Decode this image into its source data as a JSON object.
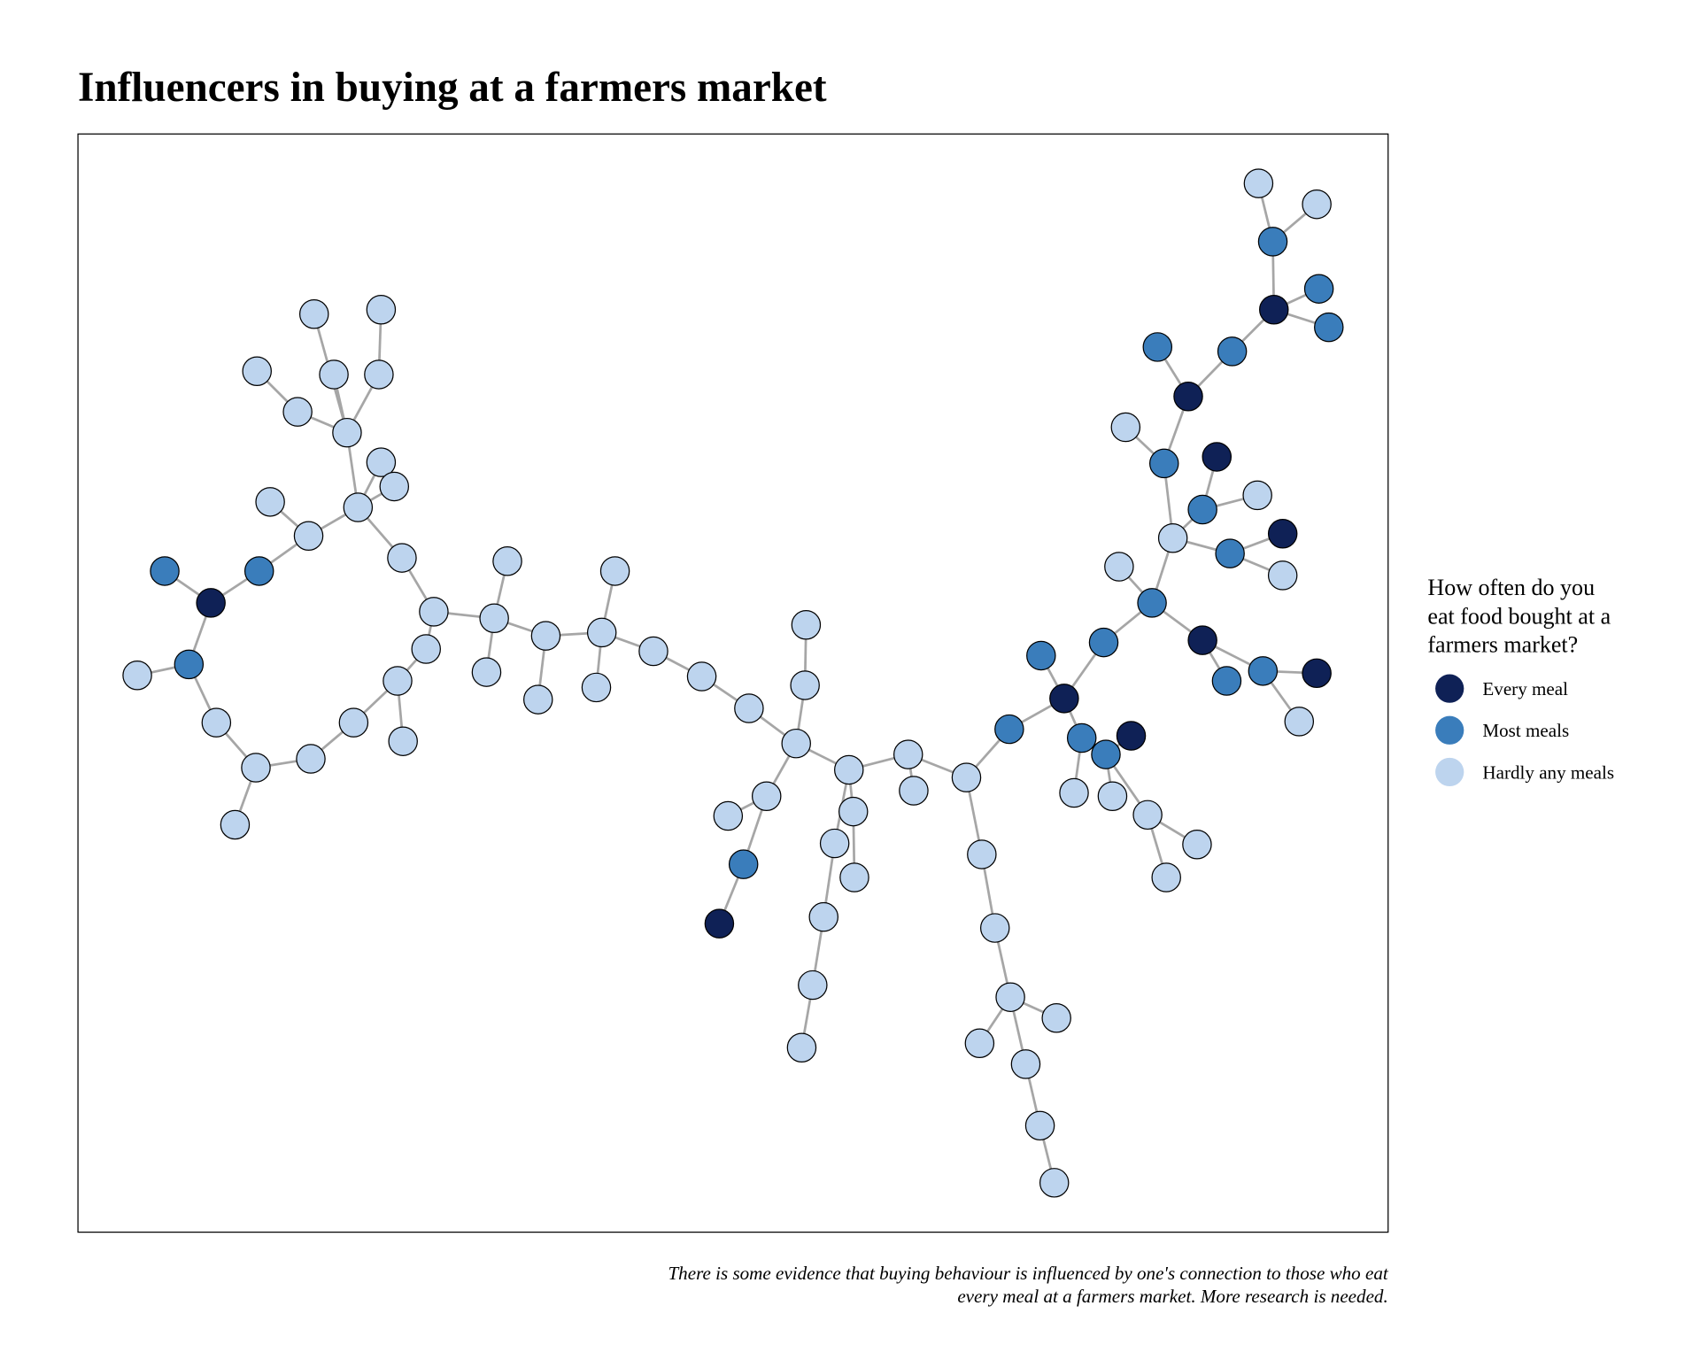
{
  "chart_data": {
    "type": "network",
    "title": "Influencers in buying at a farmers market",
    "caption": [
      "There is some evidence that buying behaviour is influenced by one's connection to those who eat",
      "every meal at a farmers market. More research is needed."
    ],
    "legend": {
      "title": [
        "How often do you",
        "eat food bought at a",
        "farmers market?"
      ],
      "entries": [
        {
          "name": "Every meal",
          "color": "#0f2156"
        },
        {
          "name": "Most meals",
          "color": "#3a7dbb"
        },
        {
          "name": "Hardly any meals",
          "color": "#bdd4ee"
        }
      ]
    },
    "nodes": [
      "Hardly any meals",
      "Hardly any meals",
      "Hardly any meals",
      "Hardly any meals",
      "Hardly any meals",
      "Hardly any meals",
      "Hardly any meals",
      "Hardly any meals",
      "Hardly any meals",
      "Hardly any meals",
      "Hardly any meals",
      "Hardly any meals",
      "Hardly any meals",
      "Most meals",
      "Most meals",
      "Every meal",
      "Hardly any meals",
      "Most meals",
      "Hardly any meals",
      "Hardly any meals",
      "Hardly any meals",
      "Hardly any meals",
      "Hardly any meals",
      "Hardly any meals",
      "Hardly any meals",
      "Hardly any meals",
      "Hardly any meals",
      "Hardly any meals",
      "Hardly any meals",
      "Hardly any meals",
      "Hardly any meals",
      "Hardly any meals",
      "Hardly any meals",
      "Hardly any meals",
      "Hardly any meals",
      "Hardly any meals",
      "Hardly any meals",
      "Hardly any meals",
      "Hardly any meals",
      "Hardly any meals",
      "Hardly any meals",
      "Hardly any meals",
      "Hardly any meals",
      "Most meals",
      "Every meal",
      "Hardly any meals",
      "Hardly any meals",
      "Hardly any meals",
      "Hardly any meals",
      "Hardly any meals",
      "Hardly any meals",
      "Hardly any meals",
      "Hardly any meals",
      "Hardly any meals",
      "Hardly any meals",
      "Hardly any meals",
      "Hardly any meals",
      "Hardly any meals",
      "Hardly any meals",
      "Hardly any meals",
      "Hardly any meals",
      "Hardly any meals",
      "Hardly any meals",
      "Most meals",
      "Every meal",
      "Most meals",
      "Most meals",
      "Most meals",
      "Most meals",
      "Every meal",
      "Hardly any meals",
      "Hardly any meals",
      "Hardly any meals",
      "Hardly any meals",
      "Hardly any meals",
      "Most meals",
      "Hardly any meals",
      "Hardly any meals",
      "Most meals",
      "Hardly any meals",
      "Every meal",
      "Most meals",
      "Most meals",
      "Every meal",
      "Most meals",
      "Most meals",
      "Most meals",
      "Hardly any meals",
      "Hardly any meals",
      "Most meals",
      "Every meal",
      "Hardly any meals",
      "Most meals",
      "Every meal",
      "Hardly any meals",
      "Every meal",
      "Most meals",
      "Most meals",
      "Every meal",
      "Hardly any meals"
    ],
    "edges": [
      [
        0,
        6
      ],
      [
        3,
        6
      ],
      [
        1,
        4
      ],
      [
        4,
        6
      ],
      [
        2,
        5
      ],
      [
        5,
        6
      ],
      [
        6,
        10
      ],
      [
        10,
        7
      ],
      [
        10,
        8
      ],
      [
        9,
        11
      ],
      [
        11,
        10
      ],
      [
        10,
        12
      ],
      [
        12,
        16
      ],
      [
        14,
        11
      ],
      [
        15,
        14
      ],
      [
        13,
        15
      ],
      [
        15,
        17
      ],
      [
        17,
        18
      ],
      [
        17,
        21
      ],
      [
        21,
        25
      ],
      [
        25,
        26
      ],
      [
        25,
        24
      ],
      [
        24,
        22
      ],
      [
        22,
        20
      ],
      [
        20,
        23
      ],
      [
        20,
        19
      ],
      [
        19,
        16
      ],
      [
        16,
        27
      ],
      [
        27,
        28
      ],
      [
        27,
        29
      ],
      [
        27,
        30
      ],
      [
        30,
        31
      ],
      [
        30,
        32
      ],
      [
        32,
        33
      ],
      [
        32,
        34
      ],
      [
        32,
        35
      ],
      [
        35,
        36
      ],
      [
        36,
        37
      ],
      [
        37,
        38
      ],
      [
        38,
        40
      ],
      [
        40,
        39
      ],
      [
        38,
        41
      ],
      [
        41,
        42
      ],
      [
        41,
        43
      ],
      [
        43,
        44
      ],
      [
        38,
        45
      ],
      [
        45,
        46
      ],
      [
        46,
        47
      ],
      [
        45,
        48
      ],
      [
        48,
        49
      ],
      [
        49,
        50
      ],
      [
        50,
        51
      ],
      [
        45,
        52
      ],
      [
        52,
        53
      ],
      [
        52,
        54
      ],
      [
        54,
        55
      ],
      [
        55,
        56
      ],
      [
        56,
        57
      ],
      [
        57,
        58
      ],
      [
        57,
        59
      ],
      [
        57,
        60
      ],
      [
        60,
        61
      ],
      [
        61,
        62
      ],
      [
        54,
        63
      ],
      [
        63,
        64
      ],
      [
        64,
        65
      ],
      [
        64,
        66
      ],
      [
        66,
        75
      ],
      [
        64,
        67
      ],
      [
        67,
        70
      ],
      [
        67,
        68
      ],
      [
        68,
        69
      ],
      [
        68,
        71
      ],
      [
        68,
        72
      ],
      [
        72,
        73
      ],
      [
        72,
        74
      ],
      [
        75,
        76
      ],
      [
        75,
        77
      ],
      [
        77,
        78
      ],
      [
        78,
        79
      ],
      [
        78,
        80
      ],
      [
        80,
        81
      ],
      [
        80,
        82
      ],
      [
        82,
        83
      ],
      [
        83,
        84
      ],
      [
        83,
        85
      ],
      [
        83,
        86
      ],
      [
        86,
        87
      ],
      [
        86,
        88
      ],
      [
        77,
        89
      ],
      [
        89,
        90
      ],
      [
        89,
        91
      ],
      [
        77,
        92
      ],
      [
        92,
        93
      ],
      [
        92,
        94
      ],
      [
        75,
        95
      ],
      [
        95,
        96
      ],
      [
        95,
        97
      ],
      [
        97,
        98
      ],
      [
        97,
        99
      ]
    ]
  }
}
